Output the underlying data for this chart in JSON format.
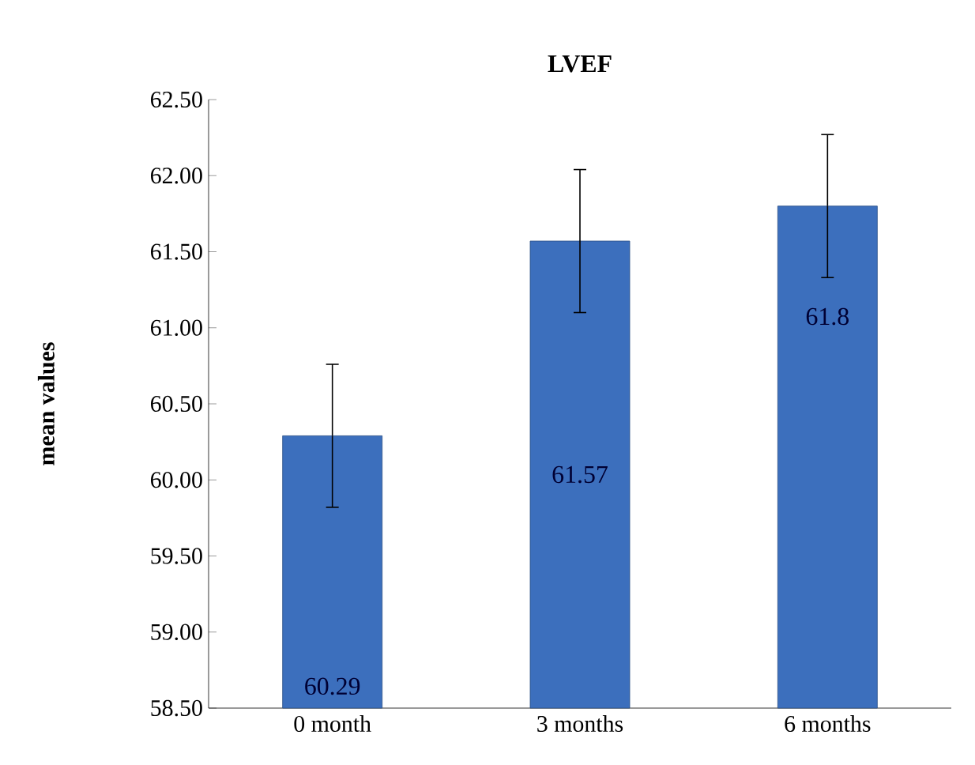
{
  "chart_data": {
    "type": "bar",
    "title": "LVEF",
    "ylabel": "mean values",
    "categories": [
      "0 month",
      "3 months",
      "6 months"
    ],
    "values": [
      60.29,
      61.57,
      61.8
    ],
    "errors": [
      0.47,
      0.47,
      0.47
    ],
    "color": "#3c6fbd",
    "data_labels": true,
    "ylim": [
      58.5,
      62.5
    ],
    "yticks": [
      {
        "value": 58.5,
        "label": "58.50"
      },
      {
        "value": 59,
        "label": "59.00"
      },
      {
        "value": 59.5,
        "label": "59.50"
      },
      {
        "value": 60,
        "label": "60.00"
      },
      {
        "value": 60.5,
        "label": "60.50"
      },
      {
        "value": 61,
        "label": "61.00"
      },
      {
        "value": 61.5,
        "label": "61.50"
      },
      {
        "value": 62,
        "label": "62.00"
      },
      {
        "value": 62.5,
        "label": "62.50"
      }
    ],
    "grid": false
  }
}
